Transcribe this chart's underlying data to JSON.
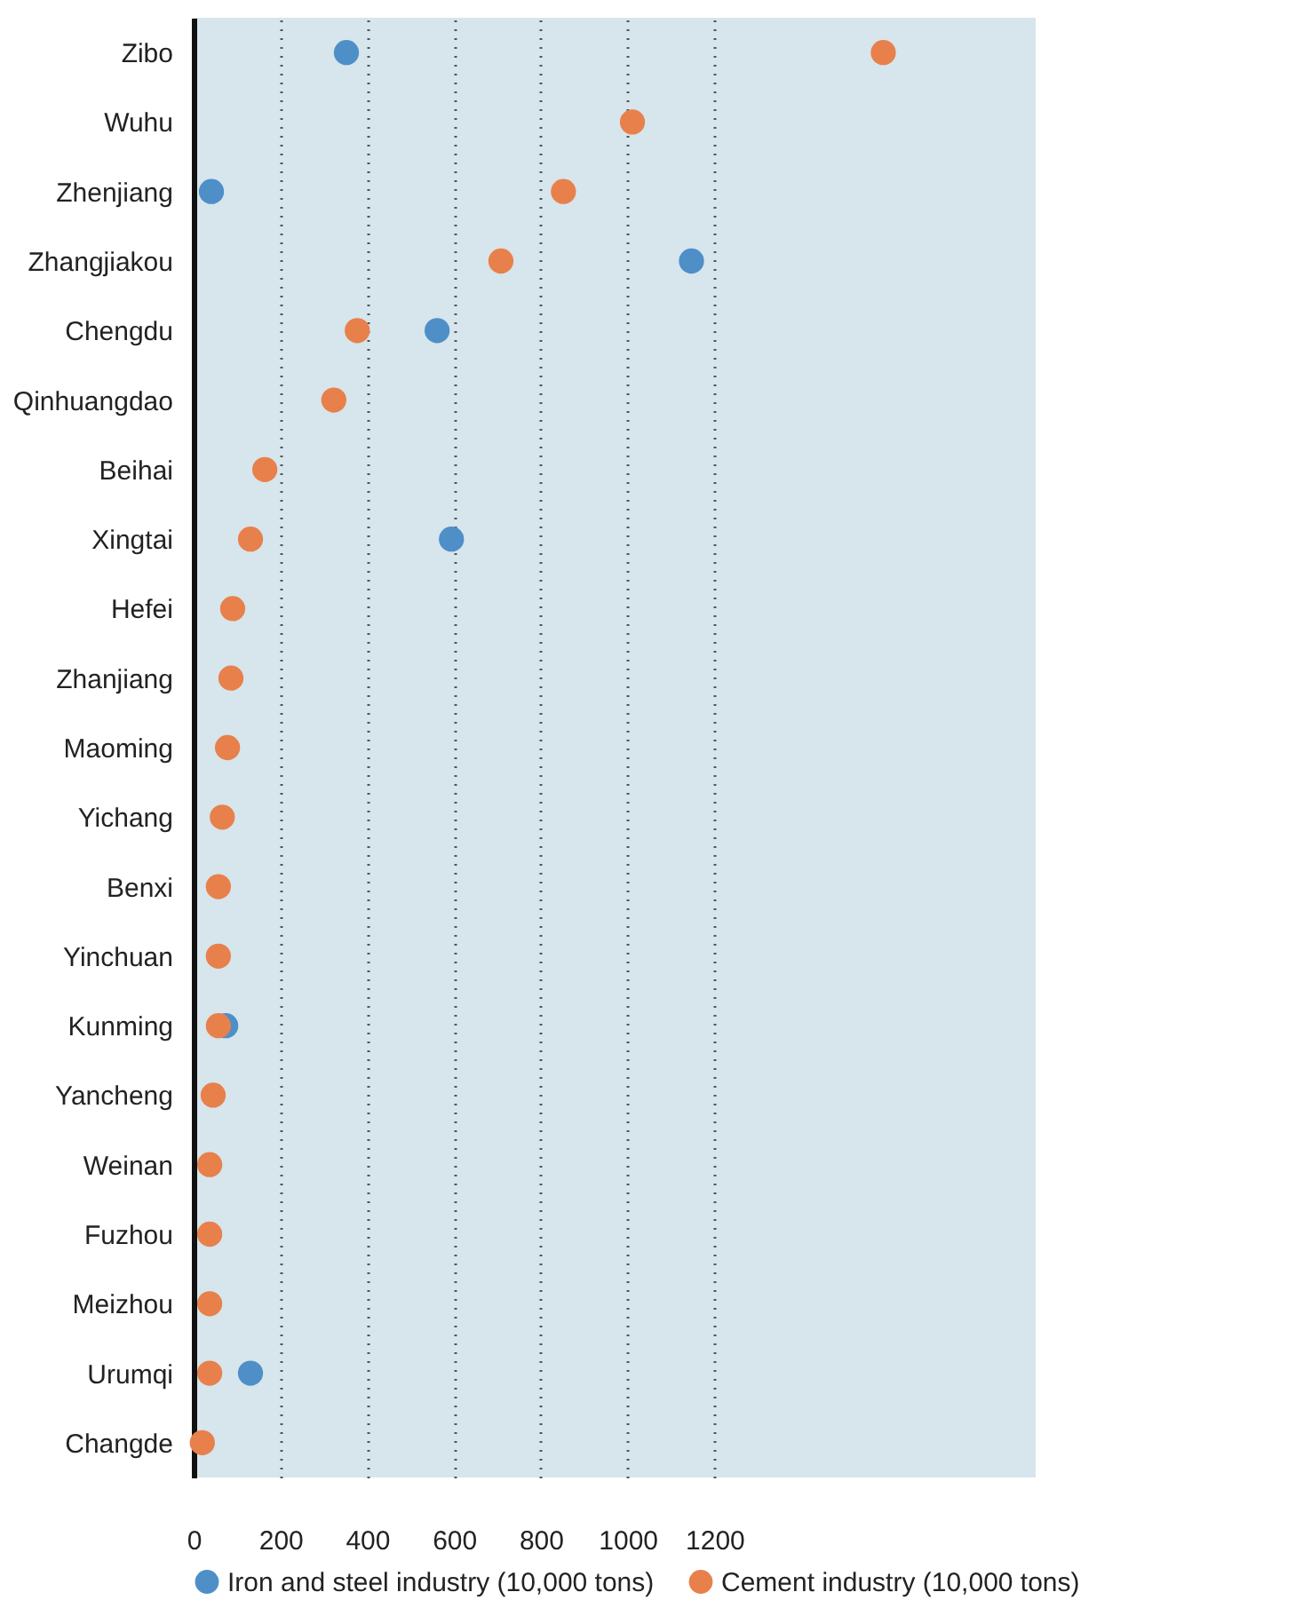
{
  "chart_data": {
    "type": "scatter",
    "orientation": "horizontal",
    "categories": [
      "Zibo",
      "Wuhu",
      "Zhenjiang",
      "Zhangjiakou",
      "Chengdu",
      "Qinhuangdao",
      "Beihai",
      "Xingtai",
      "Hefei",
      "Zhanjiang",
      "Maoming",
      "Yichang",
      "Benxi",
      "Yinchuan",
      "Kunming",
      "Yancheng",
      "Weinan",
      "Fuzhou",
      "Meizhou",
      "Urumqi",
      "Changde"
    ],
    "series": [
      {
        "name": "Iron and steel industry (10,000 tons)",
        "color": "#4e8fc8",
        "values": [
          352,
          null,
          41,
          1147,
          561,
          null,
          null,
          594,
          null,
          null,
          null,
          null,
          null,
          null,
          74,
          null,
          null,
          null,
          null,
          131,
          null
        ]
      },
      {
        "name": "Cement industry (10,000 tons)",
        "color": "#e8804b",
        "values": [
          1589,
          1011,
          852,
          708,
          377,
          323,
          164,
          131,
          90,
          86,
          78,
          66,
          57,
          57,
          57,
          45,
          37,
          37,
          37,
          37,
          20
        ]
      }
    ],
    "xlim": [
      0,
      1940
    ],
    "xticks": [
      0,
      200,
      400,
      600,
      800,
      1000,
      1200
    ],
    "grid": "x",
    "legend": "bottom",
    "marker": "circle"
  }
}
